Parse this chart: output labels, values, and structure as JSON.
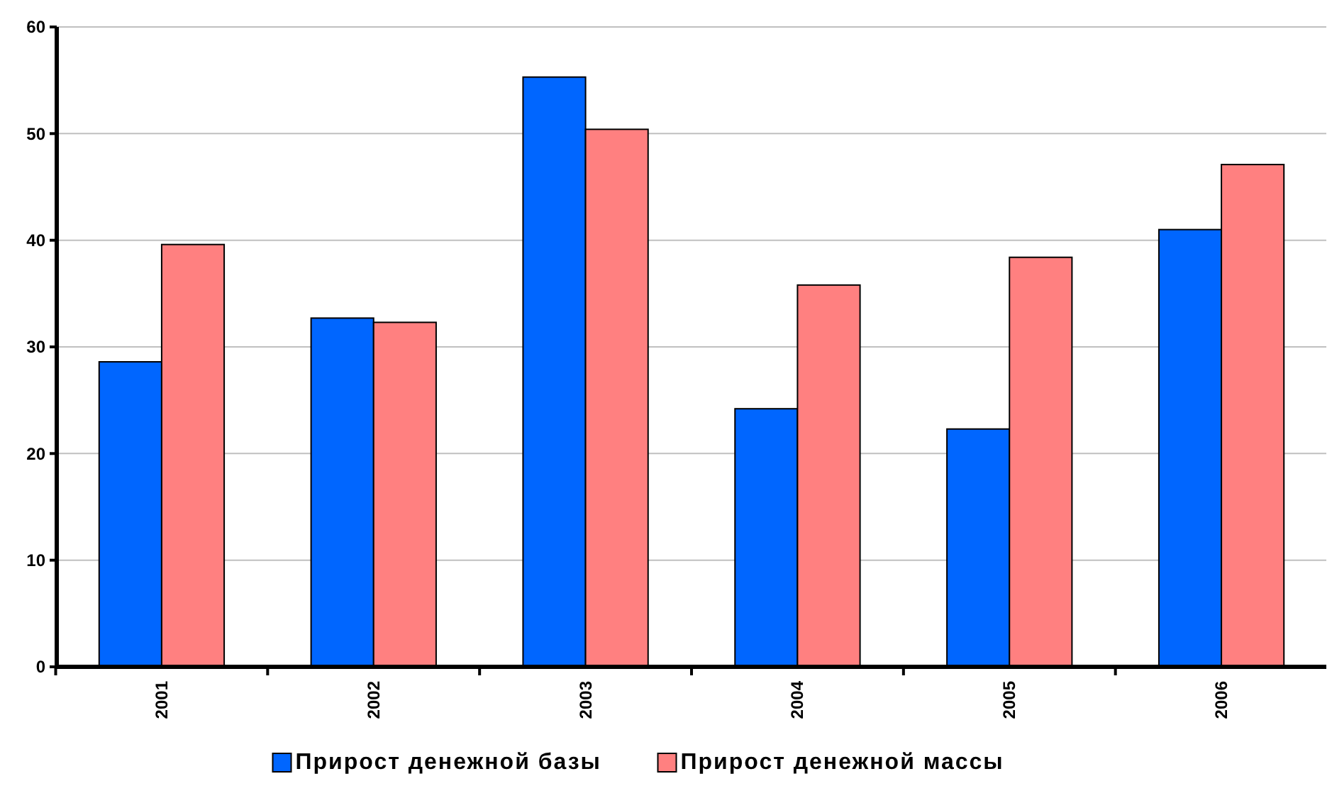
{
  "chart_data": {
    "type": "bar",
    "categories": [
      "2001",
      "2002",
      "2003",
      "2004",
      "2005",
      "2006"
    ],
    "series": [
      {
        "name": "Прирост денежной базы",
        "color": "#0066ff",
        "values": [
          28.6,
          32.7,
          55.3,
          24.2,
          22.3,
          41.0
        ]
      },
      {
        "name": "Прирост денежной массы",
        "color": "#ff8080",
        "values": [
          39.6,
          32.3,
          50.4,
          35.8,
          38.4,
          47.1
        ]
      }
    ],
    "ylim": [
      0,
      60
    ],
    "yticks": [
      0,
      10,
      20,
      30,
      40,
      50,
      60
    ],
    "grid": "y",
    "legend": "bottom"
  }
}
